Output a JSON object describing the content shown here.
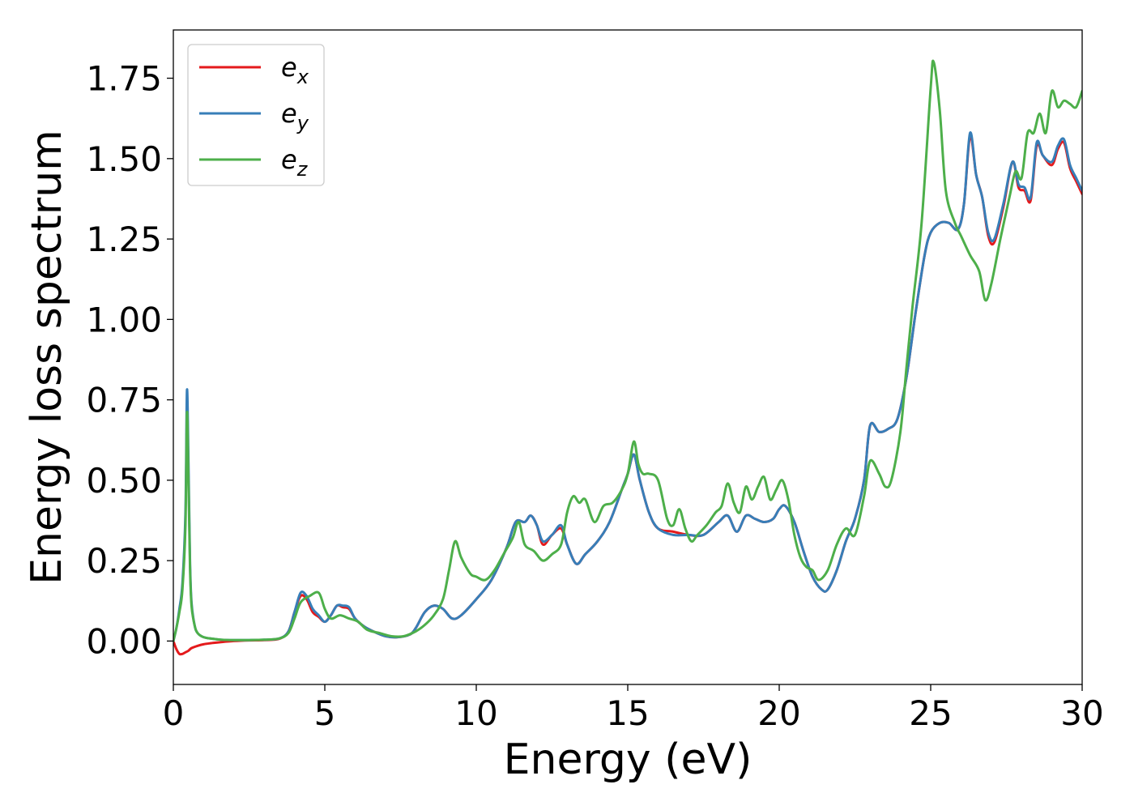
{
  "chart_data": {
    "type": "line",
    "title": "",
    "xlabel": "Energy (eV)",
    "ylabel": "Energy loss spectrum",
    "xlim": [
      0,
      30
    ],
    "ylim": [
      -0.135,
      1.9
    ],
    "xticks": [
      0,
      5,
      10,
      15,
      20,
      25,
      30
    ],
    "xtick_labels": [
      "0",
      "5",
      "10",
      "15",
      "20",
      "25",
      "30"
    ],
    "yticks": [
      0.0,
      0.25,
      0.5,
      0.75,
      1.0,
      1.25,
      1.5,
      1.75
    ],
    "ytick_labels": [
      "0.00",
      "0.25",
      "0.50",
      "0.75",
      "1.00",
      "1.25",
      "1.50",
      "1.75"
    ],
    "grid": false,
    "legend": "top-left",
    "series": [
      {
        "name": "e_x",
        "label_base": "e",
        "label_sub": "x",
        "color": "#e41a1c",
        "x": [
          0,
          0.1,
          0.2,
          0.3,
          0.4,
          0.5,
          0.6,
          0.8,
          1.0,
          1.3,
          1.6,
          2.0,
          2.5,
          3.0,
          3.5,
          3.8,
          4.0,
          4.2,
          4.4,
          4.6,
          4.8,
          5.0,
          5.2,
          5.4,
          5.6,
          5.8,
          6.0,
          6.3,
          6.6,
          7.0,
          7.4,
          7.8,
          8.0,
          8.3,
          8.6,
          8.9,
          9.2,
          9.5,
          10.0,
          10.5,
          11.0,
          11.3,
          11.6,
          11.8,
          12.0,
          12.2,
          12.5,
          12.8,
          13.0,
          13.3,
          13.6,
          14.0,
          14.4,
          14.8,
          15.0,
          15.2,
          15.4,
          15.7,
          16.0,
          16.5,
          17.0,
          17.5,
          18.0,
          18.3,
          18.6,
          18.9,
          19.2,
          19.5,
          19.8,
          20.0,
          20.2,
          20.5,
          20.8,
          21.1,
          21.4,
          21.6,
          21.9,
          22.2,
          22.5,
          22.8,
          23.0,
          23.3,
          23.6,
          23.9,
          24.2,
          24.5,
          24.8,
          25.0,
          25.3,
          25.6,
          25.9,
          26.1,
          26.3,
          26.5,
          26.7,
          26.9,
          27.1,
          27.4,
          27.7,
          27.9,
          28.1,
          28.3,
          28.5,
          28.7,
          29.0,
          29.2,
          29.4,
          29.6,
          29.8,
          30.0
        ],
        "y": [
          0.0,
          -0.025,
          -0.04,
          -0.04,
          -0.035,
          -0.03,
          -0.022,
          -0.015,
          -0.01,
          -0.006,
          -0.003,
          0.0,
          0.002,
          0.003,
          0.007,
          0.03,
          0.09,
          0.14,
          0.13,
          0.09,
          0.075,
          0.06,
          0.08,
          0.11,
          0.105,
          0.1,
          0.07,
          0.045,
          0.03,
          0.015,
          0.012,
          0.02,
          0.04,
          0.09,
          0.11,
          0.1,
          0.07,
          0.08,
          0.13,
          0.19,
          0.29,
          0.37,
          0.37,
          0.39,
          0.36,
          0.3,
          0.33,
          0.35,
          0.3,
          0.24,
          0.27,
          0.31,
          0.37,
          0.47,
          0.52,
          0.58,
          0.5,
          0.4,
          0.35,
          0.34,
          0.33,
          0.33,
          0.37,
          0.39,
          0.34,
          0.39,
          0.38,
          0.37,
          0.38,
          0.41,
          0.42,
          0.37,
          0.28,
          0.2,
          0.16,
          0.16,
          0.22,
          0.31,
          0.38,
          0.5,
          0.67,
          0.65,
          0.66,
          0.69,
          0.82,
          1.02,
          1.2,
          1.27,
          1.3,
          1.3,
          1.28,
          1.36,
          1.57,
          1.45,
          1.38,
          1.26,
          1.24,
          1.35,
          1.49,
          1.41,
          1.4,
          1.37,
          1.54,
          1.51,
          1.48,
          1.53,
          1.55,
          1.47,
          1.43,
          1.39
        ]
      },
      {
        "name": "e_y",
        "label_base": "e",
        "label_sub": "y",
        "color": "#377eb8",
        "x": [
          0,
          0.1,
          0.2,
          0.3,
          0.4,
          0.45,
          0.5,
          0.55,
          0.6,
          0.7,
          0.8,
          1.0,
          1.3,
          1.6,
          2.0,
          2.5,
          3.0,
          3.5,
          3.8,
          4.0,
          4.2,
          4.4,
          4.6,
          4.8,
          5.0,
          5.2,
          5.4,
          5.6,
          5.8,
          6.0,
          6.3,
          6.6,
          7.0,
          7.4,
          7.8,
          8.0,
          8.3,
          8.6,
          8.9,
          9.2,
          9.5,
          10.0,
          10.5,
          11.0,
          11.3,
          11.6,
          11.8,
          12.0,
          12.2,
          12.5,
          12.8,
          13.0,
          13.3,
          13.6,
          14.0,
          14.4,
          14.8,
          15.0,
          15.2,
          15.4,
          15.7,
          16.0,
          16.5,
          17.0,
          17.5,
          18.0,
          18.3,
          18.6,
          18.9,
          19.2,
          19.5,
          19.8,
          20.0,
          20.2,
          20.5,
          20.8,
          21.1,
          21.4,
          21.6,
          21.9,
          22.2,
          22.5,
          22.8,
          23.0,
          23.3,
          23.6,
          23.9,
          24.2,
          24.5,
          24.8,
          25.0,
          25.3,
          25.6,
          25.9,
          26.1,
          26.3,
          26.5,
          26.7,
          26.9,
          27.1,
          27.4,
          27.7,
          27.9,
          28.1,
          28.3,
          28.5,
          28.7,
          29.0,
          29.2,
          29.4,
          29.6,
          29.8,
          30.0
        ],
        "y": [
          0.0,
          0.04,
          0.1,
          0.18,
          0.4,
          0.78,
          0.55,
          0.25,
          0.12,
          0.05,
          0.025,
          0.012,
          0.007,
          0.004,
          0.003,
          0.003,
          0.004,
          0.008,
          0.03,
          0.09,
          0.15,
          0.14,
          0.1,
          0.08,
          0.06,
          0.08,
          0.11,
          0.11,
          0.105,
          0.07,
          0.045,
          0.03,
          0.015,
          0.012,
          0.02,
          0.04,
          0.09,
          0.11,
          0.1,
          0.07,
          0.08,
          0.13,
          0.19,
          0.29,
          0.37,
          0.37,
          0.39,
          0.36,
          0.31,
          0.33,
          0.36,
          0.3,
          0.24,
          0.27,
          0.31,
          0.37,
          0.47,
          0.52,
          0.58,
          0.5,
          0.4,
          0.35,
          0.33,
          0.33,
          0.33,
          0.37,
          0.39,
          0.34,
          0.39,
          0.38,
          0.37,
          0.38,
          0.41,
          0.42,
          0.37,
          0.28,
          0.2,
          0.16,
          0.16,
          0.22,
          0.31,
          0.38,
          0.5,
          0.67,
          0.65,
          0.66,
          0.69,
          0.82,
          1.02,
          1.2,
          1.27,
          1.3,
          1.3,
          1.28,
          1.36,
          1.58,
          1.45,
          1.38,
          1.27,
          1.25,
          1.36,
          1.49,
          1.42,
          1.41,
          1.38,
          1.55,
          1.51,
          1.49,
          1.54,
          1.56,
          1.48,
          1.44,
          1.4
        ]
      },
      {
        "name": "e_z",
        "label_base": "e",
        "label_sub": "z",
        "color": "#4daf4a",
        "x": [
          0,
          0.1,
          0.2,
          0.3,
          0.4,
          0.45,
          0.5,
          0.55,
          0.6,
          0.7,
          0.8,
          1.0,
          1.3,
          1.6,
          2.0,
          2.5,
          3.0,
          3.5,
          3.8,
          4.0,
          4.2,
          4.5,
          4.8,
          5.0,
          5.2,
          5.5,
          5.8,
          6.1,
          6.4,
          6.8,
          7.2,
          7.6,
          8.0,
          8.3,
          8.6,
          8.9,
          9.1,
          9.3,
          9.5,
          9.8,
          10.0,
          10.3,
          10.6,
          10.9,
          11.2,
          11.4,
          11.6,
          11.9,
          12.2,
          12.5,
          12.8,
          13.0,
          13.2,
          13.4,
          13.6,
          13.9,
          14.2,
          14.5,
          14.8,
          15.0,
          15.2,
          15.35,
          15.5,
          15.7,
          16.0,
          16.3,
          16.5,
          16.7,
          16.9,
          17.1,
          17.3,
          17.6,
          17.9,
          18.1,
          18.3,
          18.5,
          18.7,
          18.9,
          19.1,
          19.3,
          19.5,
          19.7,
          19.9,
          20.1,
          20.3,
          20.5,
          20.7,
          20.9,
          21.1,
          21.3,
          21.6,
          21.9,
          22.2,
          22.5,
          22.8,
          23.0,
          23.3,
          23.5,
          23.7,
          24.0,
          24.2,
          24.4,
          24.7,
          25.0,
          25.1,
          25.3,
          25.5,
          25.8,
          26.0,
          26.3,
          26.6,
          26.8,
          27.0,
          27.3,
          27.6,
          27.8,
          28.0,
          28.2,
          28.4,
          28.6,
          28.8,
          29.0,
          29.2,
          29.4,
          29.6,
          29.8,
          30.0
        ],
        "y": [
          0.0,
          0.04,
          0.09,
          0.16,
          0.36,
          0.71,
          0.5,
          0.23,
          0.11,
          0.05,
          0.025,
          0.012,
          0.007,
          0.004,
          0.003,
          0.003,
          0.004,
          0.008,
          0.025,
          0.07,
          0.12,
          0.14,
          0.15,
          0.1,
          0.07,
          0.08,
          0.07,
          0.06,
          0.035,
          0.025,
          0.015,
          0.015,
          0.03,
          0.05,
          0.08,
          0.13,
          0.22,
          0.31,
          0.26,
          0.21,
          0.2,
          0.19,
          0.22,
          0.27,
          0.32,
          0.37,
          0.3,
          0.28,
          0.25,
          0.27,
          0.3,
          0.4,
          0.45,
          0.43,
          0.44,
          0.37,
          0.42,
          0.43,
          0.47,
          0.52,
          0.62,
          0.55,
          0.52,
          0.52,
          0.5,
          0.38,
          0.36,
          0.41,
          0.35,
          0.31,
          0.33,
          0.36,
          0.4,
          0.42,
          0.49,
          0.43,
          0.4,
          0.48,
          0.44,
          0.48,
          0.51,
          0.44,
          0.47,
          0.5,
          0.44,
          0.33,
          0.26,
          0.23,
          0.22,
          0.19,
          0.22,
          0.3,
          0.35,
          0.33,
          0.45,
          0.56,
          0.52,
          0.48,
          0.5,
          0.65,
          0.85,
          1.04,
          1.3,
          1.72,
          1.8,
          1.65,
          1.4,
          1.3,
          1.26,
          1.2,
          1.15,
          1.06,
          1.11,
          1.25,
          1.38,
          1.46,
          1.44,
          1.58,
          1.58,
          1.64,
          1.58,
          1.71,
          1.66,
          1.68,
          1.67,
          1.66,
          1.71
        ]
      }
    ]
  }
}
